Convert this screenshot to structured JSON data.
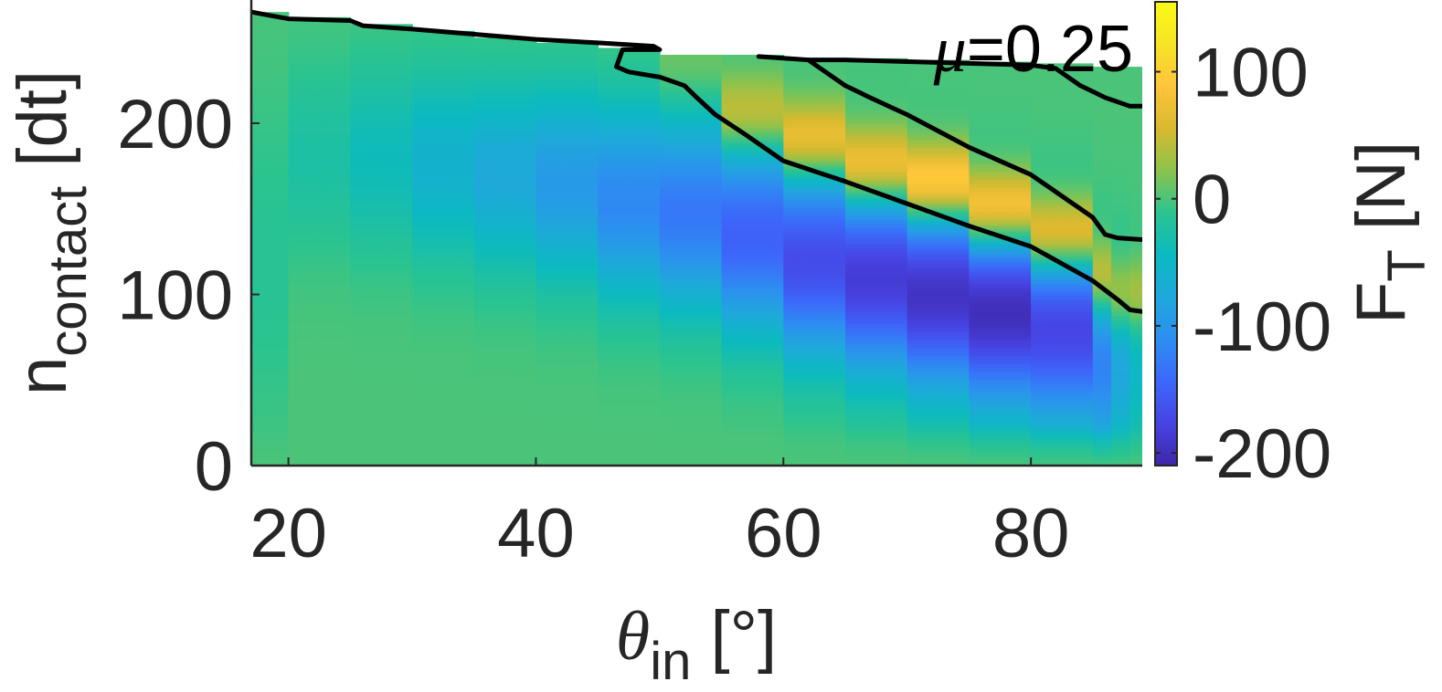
{
  "chart_data": {
    "type": "heatmap",
    "annotation": {
      "symbol": "μ",
      "text": "=0.25"
    },
    "xaxis": {
      "symbol": "θ",
      "subscript": "in",
      "unit": " [°]",
      "ticks": [
        20,
        40,
        60,
        80
      ],
      "tick_labels": [
        "20",
        "40",
        "60",
        "80"
      ],
      "range": [
        17,
        89
      ]
    },
    "yaxis": {
      "label": "n",
      "subscript": "contact",
      "unit": " [dt]",
      "ticks": [
        0,
        100,
        200
      ],
      "tick_labels": [
        "0",
        "100",
        "200"
      ],
      "range": [
        0,
        272
      ]
    },
    "colorbar": {
      "label": "F",
      "subscript": "T",
      "unit": " [N]",
      "ticks": [
        -200,
        -100,
        0,
        100
      ],
      "tick_labels": [
        "-200",
        "-100",
        "0",
        "100"
      ],
      "range": [
        -210,
        155
      ],
      "colormap": "parula",
      "colormap_stops": [
        "#3e26a8",
        "#4743e4",
        "#3c68fb",
        "#2d8ef1",
        "#1fa8db",
        "#0bbac0",
        "#2bc48f",
        "#8cc34c",
        "#d9b92e",
        "#fec43c",
        "#f6e425",
        "#f9fb15"
      ]
    },
    "columns": [
      {
        "x0": 17,
        "x1": 20,
        "top": 265,
        "bottom": 2,
        "minY": null,
        "minV": -15,
        "maxY": null,
        "maxV": 0
      },
      {
        "x0": 20,
        "x1": 25,
        "top": 262,
        "bottom": 2,
        "minY": 180,
        "minV": -25,
        "maxY": null,
        "maxV": 0
      },
      {
        "x0": 25,
        "x1": 30,
        "top": 258,
        "bottom": 2,
        "minY": 180,
        "minV": -40,
        "maxY": null,
        "maxV": 0
      },
      {
        "x0": 30,
        "x1": 35,
        "top": 254,
        "bottom": 2,
        "minY": 175,
        "minV": -60,
        "maxY": null,
        "maxV": 0
      },
      {
        "x0": 35,
        "x1": 40,
        "top": 250,
        "bottom": 2,
        "minY": 170,
        "minV": -75,
        "maxY": null,
        "maxV": 0
      },
      {
        "x0": 40,
        "x1": 45,
        "top": 247,
        "bottom": 2,
        "minY": 165,
        "minV": -95,
        "maxY": null,
        "maxV": 0
      },
      {
        "x0": 45,
        "x1": 50,
        "top": 244,
        "bottom": 2,
        "minY": 155,
        "minV": -115,
        "maxY": null,
        "maxV": 0
      },
      {
        "x0": 50,
        "x1": 55,
        "top": 240,
        "bottom": 2,
        "minY": 148,
        "minV": -130,
        "maxY": 232,
        "maxV": 20
      },
      {
        "x0": 55,
        "x1": 60,
        "top": 240,
        "bottom": 2,
        "minY": 135,
        "minV": -150,
        "maxY": 205,
        "maxV": 70
      },
      {
        "x0": 60,
        "x1": 65,
        "top": 238,
        "bottom": 2,
        "minY": 120,
        "minV": -170,
        "maxY": 190,
        "maxV": 100
      },
      {
        "x0": 65,
        "x1": 70,
        "top": 238,
        "bottom": 2,
        "minY": 110,
        "minV": -185,
        "maxY": 175,
        "maxV": 115
      },
      {
        "x0": 70,
        "x1": 75,
        "top": 237,
        "bottom": 2,
        "minY": 100,
        "minV": -195,
        "maxY": 165,
        "maxV": 140
      },
      {
        "x0": 75,
        "x1": 80,
        "top": 236,
        "bottom": 2,
        "minY": 90,
        "minV": -200,
        "maxY": 150,
        "maxV": 135
      },
      {
        "x0": 80,
        "x1": 85,
        "top": 235,
        "bottom": 2,
        "minY": 80,
        "minV": -175,
        "maxY": 135,
        "maxV": 120
      },
      {
        "x0": 85,
        "x1": 86.5,
        "top": 233,
        "bottom": 2,
        "minY": 60,
        "minV": -120,
        "maxY": 110,
        "maxV": 90
      },
      {
        "x0": 86.5,
        "x1": 88,
        "top": 233,
        "bottom": 2,
        "minY": 60,
        "minV": -80,
        "maxY": 100,
        "maxV": 70
      },
      {
        "x0": 88,
        "x1": 89,
        "top": 233,
        "bottom": 2,
        "minY": 60,
        "minV": -50,
        "maxY": 100,
        "maxV": 60
      }
    ],
    "contours": [
      {
        "name": "upper-left",
        "points": [
          [
            17,
            265
          ],
          [
            18.5,
            263
          ],
          [
            20,
            261
          ],
          [
            25,
            260
          ],
          [
            26,
            257
          ],
          [
            30,
            255
          ],
          [
            35,
            252
          ],
          [
            40,
            249
          ],
          [
            45,
            247
          ],
          [
            49.5,
            245
          ],
          [
            50,
            243
          ],
          [
            47,
            243
          ],
          [
            46.5,
            233
          ],
          [
            47.5,
            230
          ],
          [
            50,
            227
          ],
          [
            52,
            222
          ],
          [
            53,
            215
          ],
          [
            54.5,
            205
          ],
          [
            57,
            193
          ],
          [
            60,
            178
          ],
          [
            65,
            166
          ],
          [
            70,
            153
          ],
          [
            75,
            140
          ],
          [
            80,
            128
          ],
          [
            85,
            108
          ],
          [
            87,
            97
          ],
          [
            88,
            91
          ],
          [
            89,
            90
          ]
        ]
      },
      {
        "name": "upper-right",
        "points": [
          [
            58,
            239
          ],
          [
            60,
            238
          ],
          [
            62,
            237
          ],
          [
            65,
            237
          ],
          [
            70,
            236
          ],
          [
            75,
            235
          ],
          [
            80,
            234
          ],
          [
            82,
            232
          ],
          [
            84,
            222
          ],
          [
            86,
            215
          ],
          [
            88,
            210
          ],
          [
            89,
            210
          ]
        ]
      },
      {
        "name": "middle",
        "points": [
          [
            62,
            237
          ],
          [
            63,
            232
          ],
          [
            64,
            227
          ],
          [
            65,
            222
          ],
          [
            67,
            215
          ],
          [
            70,
            205
          ],
          [
            75,
            186
          ],
          [
            80,
            170
          ],
          [
            83,
            155
          ],
          [
            85,
            145
          ],
          [
            86,
            135
          ],
          [
            87,
            133
          ],
          [
            89,
            132
          ]
        ]
      }
    ]
  }
}
